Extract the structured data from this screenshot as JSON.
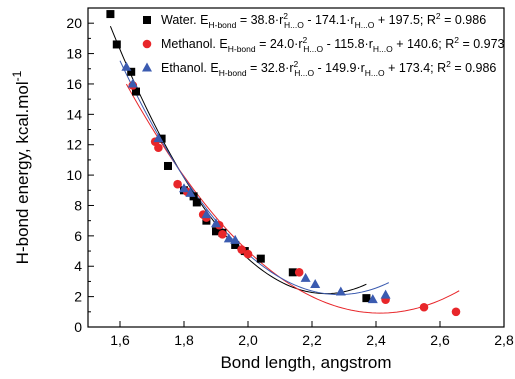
{
  "chart_data": {
    "type": "scatter",
    "xlabel": "Bond length, angstrom",
    "ylabel_parts": {
      "main": "H-bond energy, kcal.mol",
      "sup": "-1"
    },
    "xlim": [
      1.5,
      2.8
    ],
    "ylim": [
      0,
      21
    ],
    "x_ticks": [
      1.6,
      1.8,
      2.0,
      2.2,
      2.4,
      2.6,
      2.8
    ],
    "x_tick_labels": [
      "1,6",
      "1,8",
      "2,0",
      "2,2",
      "2,4",
      "2,6",
      "2,8"
    ],
    "y_ticks": [
      0,
      2,
      4,
      6,
      8,
      10,
      12,
      14,
      16,
      18,
      20
    ],
    "y_tick_labels": [
      "0",
      "2",
      "4",
      "6",
      "8",
      "10",
      "12",
      "14",
      "16",
      "18",
      "20"
    ],
    "legend_position": "top-right",
    "series": [
      {
        "name": "Water",
        "color": "#000000",
        "marker": "square",
        "legend_parts": [
          "Water. E",
          "H-bond",
          " = 38.8·r",
          "2",
          "H...O",
          " - 174.1·r",
          "H...O",
          " + 197.5; R",
          "2",
          " = 0.986"
        ],
        "fit": [
          38.8,
          -174.1,
          197.5
        ],
        "fit_range": [
          1.57,
          2.37
        ],
        "points": [
          [
            1.57,
            20.6
          ],
          [
            1.59,
            18.6
          ],
          [
            1.635,
            16.8
          ],
          [
            1.65,
            15.5
          ],
          [
            1.73,
            12.4
          ],
          [
            1.75,
            10.6
          ],
          [
            1.8,
            9.0
          ],
          [
            1.83,
            8.6
          ],
          [
            1.84,
            8.2
          ],
          [
            1.87,
            7.0
          ],
          [
            1.9,
            6.3
          ],
          [
            1.92,
            6.2
          ],
          [
            1.96,
            5.4
          ],
          [
            1.99,
            5.0
          ],
          [
            2.04,
            4.5
          ],
          [
            2.14,
            3.6
          ],
          [
            2.37,
            1.9
          ]
        ]
      },
      {
        "name": "Methanol",
        "color": "#e8262a",
        "marker": "circle",
        "legend_parts": [
          "Methanol.  E",
          "H-bond",
          " = 24.0·r",
          "2",
          "H...O",
          " - 115.8·r",
          "H...O",
          " + 140.6; R",
          "2",
          " = 0.973"
        ],
        "fit": [
          24.0,
          -115.8,
          140.6
        ],
        "fit_range": [
          1.62,
          2.66
        ],
        "points": [
          [
            1.64,
            15.9
          ],
          [
            1.71,
            12.2
          ],
          [
            1.72,
            11.8
          ],
          [
            1.78,
            9.4
          ],
          [
            1.81,
            8.9
          ],
          [
            1.86,
            7.4
          ],
          [
            1.87,
            7.2
          ],
          [
            1.91,
            6.7
          ],
          [
            1.92,
            6.1
          ],
          [
            1.98,
            5.1
          ],
          [
            2.0,
            4.8
          ],
          [
            2.16,
            3.6
          ],
          [
            2.43,
            1.8
          ],
          [
            2.55,
            1.3
          ],
          [
            2.65,
            1.0
          ]
        ]
      },
      {
        "name": "Ethanol",
        "color": "#3b5bb0",
        "marker": "triangle",
        "legend_parts": [
          "Ethanol.  E",
          "H-bond",
          " = 32.8·r",
          "2",
          "H...O",
          " - 149.9·r",
          "H...O",
          " + 173.4; R",
          "2",
          " = 0.986"
        ],
        "fit": [
          32.8,
          -149.9,
          173.4
        ],
        "fit_range": [
          1.6,
          2.44
        ],
        "points": [
          [
            1.62,
            17.1
          ],
          [
            1.64,
            16.0
          ],
          [
            1.72,
            12.4
          ],
          [
            1.8,
            9.1
          ],
          [
            1.82,
            8.8
          ],
          [
            1.87,
            7.4
          ],
          [
            1.9,
            6.8
          ],
          [
            1.94,
            5.8
          ],
          [
            1.96,
            5.7
          ],
          [
            2.18,
            3.2
          ],
          [
            2.21,
            2.8
          ],
          [
            2.29,
            2.3
          ],
          [
            2.39,
            1.8
          ],
          [
            2.43,
            2.1
          ]
        ]
      }
    ]
  }
}
